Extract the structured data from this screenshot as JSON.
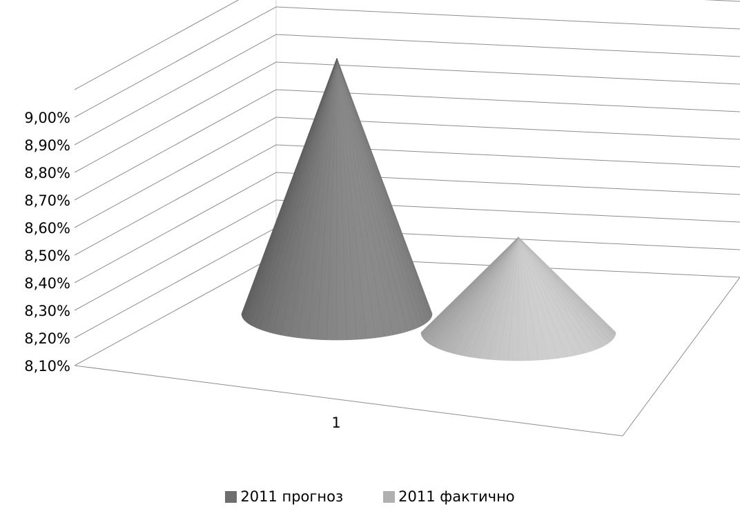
{
  "chart_data": {
    "type": "bar",
    "style": "3d-cone",
    "categories": [
      "1"
    ],
    "series": [
      {
        "name": "2011 прогноз",
        "values": [
          9.05
        ],
        "color": "#6e6e6e"
      },
      {
        "name": "2011 фактично",
        "values": [
          8.56
        ],
        "color": "#b0b0b0"
      }
    ],
    "ylim": [
      8.1,
      9.1
    ],
    "yticks": [
      "8,10%",
      "8,20%",
      "8,30%",
      "8,40%",
      "8,50%",
      "8,60%",
      "8,70%",
      "8,80%",
      "8,90%",
      "9,00%"
    ],
    "grid": true,
    "legend": "bottom"
  }
}
